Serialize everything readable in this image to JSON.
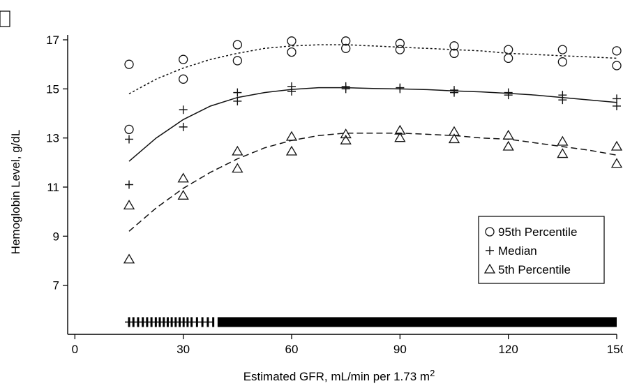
{
  "chart_data": {
    "type": "scatter",
    "title": "",
    "xlabel": "Estimated GFR, mL/min per 1.73 m",
    "xlabel_superscript": "2",
    "ylabel": "Hemoglobin Level, g/dL",
    "xlim": [
      -2,
      150
    ],
    "ylim": [
      5.0,
      17.2
    ],
    "xticks": [
      0,
      30,
      60,
      90,
      120,
      150
    ],
    "yticks": [
      7,
      9,
      11,
      13,
      15,
      17
    ],
    "grid": false,
    "legend_position": "bottom-right",
    "series": [
      {
        "name": "95th Percentile",
        "marker": "circle",
        "points": [
          [
            15,
            16.0
          ],
          [
            15,
            13.35
          ],
          [
            30,
            16.2
          ],
          [
            30,
            15.4
          ],
          [
            45,
            16.8
          ],
          [
            45,
            16.15
          ],
          [
            60,
            16.95
          ],
          [
            60,
            16.5
          ],
          [
            75,
            16.95
          ],
          [
            75,
            16.65
          ],
          [
            90,
            16.85
          ],
          [
            90,
            16.6
          ],
          [
            105,
            16.75
          ],
          [
            105,
            16.45
          ],
          [
            120,
            16.6
          ],
          [
            120,
            16.25
          ],
          [
            135,
            16.6
          ],
          [
            135,
            16.1
          ],
          [
            150,
            16.55
          ],
          [
            150,
            15.95
          ]
        ],
        "fit": {
          "style": "dotted",
          "x": [
            15,
            22.5,
            30,
            37.5,
            45,
            52.5,
            60,
            67.5,
            75,
            82.5,
            90,
            97.5,
            105,
            112.5,
            120,
            127.5,
            135,
            142.5,
            150
          ],
          "y": [
            14.8,
            15.4,
            15.85,
            16.2,
            16.45,
            16.65,
            16.75,
            16.8,
            16.8,
            16.75,
            16.7,
            16.65,
            16.6,
            16.55,
            16.45,
            16.4,
            16.35,
            16.3,
            16.25
          ]
        }
      },
      {
        "name": "Median",
        "marker": "plus",
        "points": [
          [
            15,
            12.95
          ],
          [
            15,
            11.1
          ],
          [
            30,
            14.15
          ],
          [
            30,
            13.45
          ],
          [
            45,
            14.85
          ],
          [
            45,
            14.5
          ],
          [
            60,
            15.1
          ],
          [
            60,
            14.9
          ],
          [
            75,
            15.1
          ],
          [
            75,
            15.0
          ],
          [
            90,
            15.05
          ],
          [
            90,
            15.0
          ],
          [
            105,
            14.95
          ],
          [
            105,
            14.85
          ],
          [
            120,
            14.85
          ],
          [
            120,
            14.75
          ],
          [
            135,
            14.75
          ],
          [
            135,
            14.55
          ],
          [
            150,
            14.6
          ],
          [
            150,
            14.3
          ]
        ],
        "fit": {
          "style": "solid",
          "x": [
            15,
            22.5,
            30,
            37.5,
            45,
            52.5,
            60,
            67.5,
            75,
            82.5,
            90,
            97.5,
            105,
            112.5,
            120,
            127.5,
            135,
            142.5,
            150
          ],
          "y": [
            12.05,
            13.0,
            13.75,
            14.3,
            14.65,
            14.85,
            14.98,
            15.05,
            15.05,
            15.02,
            15.0,
            14.97,
            14.92,
            14.88,
            14.82,
            14.75,
            14.65,
            14.55,
            14.45
          ]
        }
      },
      {
        "name": "5th Percentile",
        "marker": "triangle",
        "points": [
          [
            15,
            10.25
          ],
          [
            15,
            8.05
          ],
          [
            30,
            11.35
          ],
          [
            30,
            10.65
          ],
          [
            45,
            12.45
          ],
          [
            45,
            11.75
          ],
          [
            60,
            13.05
          ],
          [
            60,
            12.45
          ],
          [
            75,
            13.15
          ],
          [
            75,
            12.9
          ],
          [
            90,
            13.3
          ],
          [
            90,
            13.0
          ],
          [
            105,
            13.25
          ],
          [
            105,
            12.95
          ],
          [
            120,
            13.1
          ],
          [
            120,
            12.65
          ],
          [
            135,
            12.85
          ],
          [
            135,
            12.35
          ],
          [
            150,
            12.65
          ],
          [
            150,
            11.95
          ]
        ],
        "fit": {
          "style": "dashed",
          "x": [
            15,
            22.5,
            30,
            37.5,
            45,
            52.5,
            60,
            67.5,
            75,
            82.5,
            90,
            97.5,
            105,
            112.5,
            120,
            127.5,
            135,
            142.5,
            150
          ],
          "y": [
            9.2,
            10.15,
            10.95,
            11.6,
            12.15,
            12.6,
            12.9,
            13.1,
            13.2,
            13.2,
            13.2,
            13.15,
            13.1,
            13.0,
            12.95,
            12.8,
            12.65,
            12.5,
            12.3
          ]
        }
      }
    ],
    "rug": {
      "y": 5.5,
      "x_ticks": [
        15,
        16.2,
        17.5,
        18.8,
        20,
        21.2,
        22.4,
        23.5,
        24.6,
        25.7,
        26.8,
        27.9,
        29,
        30.1,
        31.2,
        32.3,
        33.8,
        35.3,
        36.8,
        38.3
      ],
      "dense_range": [
        39.5,
        150
      ]
    },
    "legend": [
      {
        "label": "95th Percentile",
        "marker": "circle"
      },
      {
        "label": "Median",
        "marker": "plus"
      },
      {
        "label": "5th Percentile",
        "marker": "triangle"
      }
    ]
  }
}
